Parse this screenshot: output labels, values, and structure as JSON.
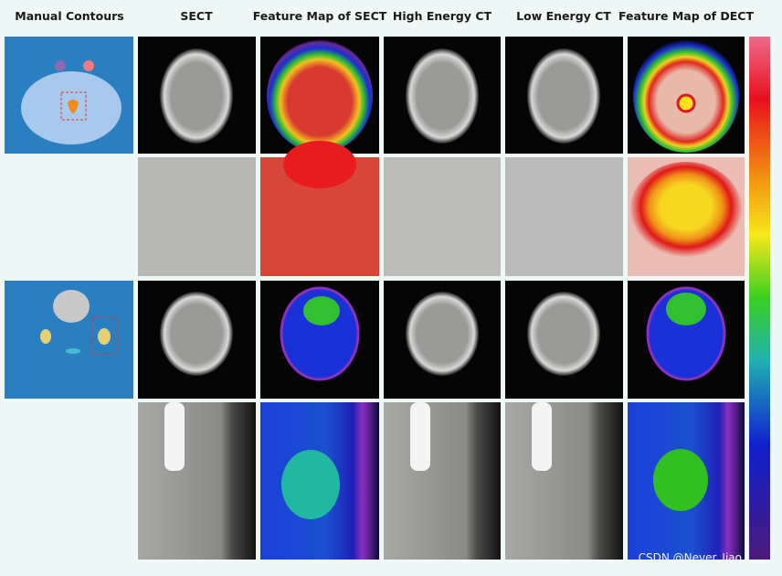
{
  "headers": [
    "Manual Contours",
    "SECT",
    "Feature Map of SECT",
    "High Energy CT",
    "Low Energy CT",
    "Feature Map of DECT"
  ],
  "watermark": "CSDN @Never_Jiao"
}
